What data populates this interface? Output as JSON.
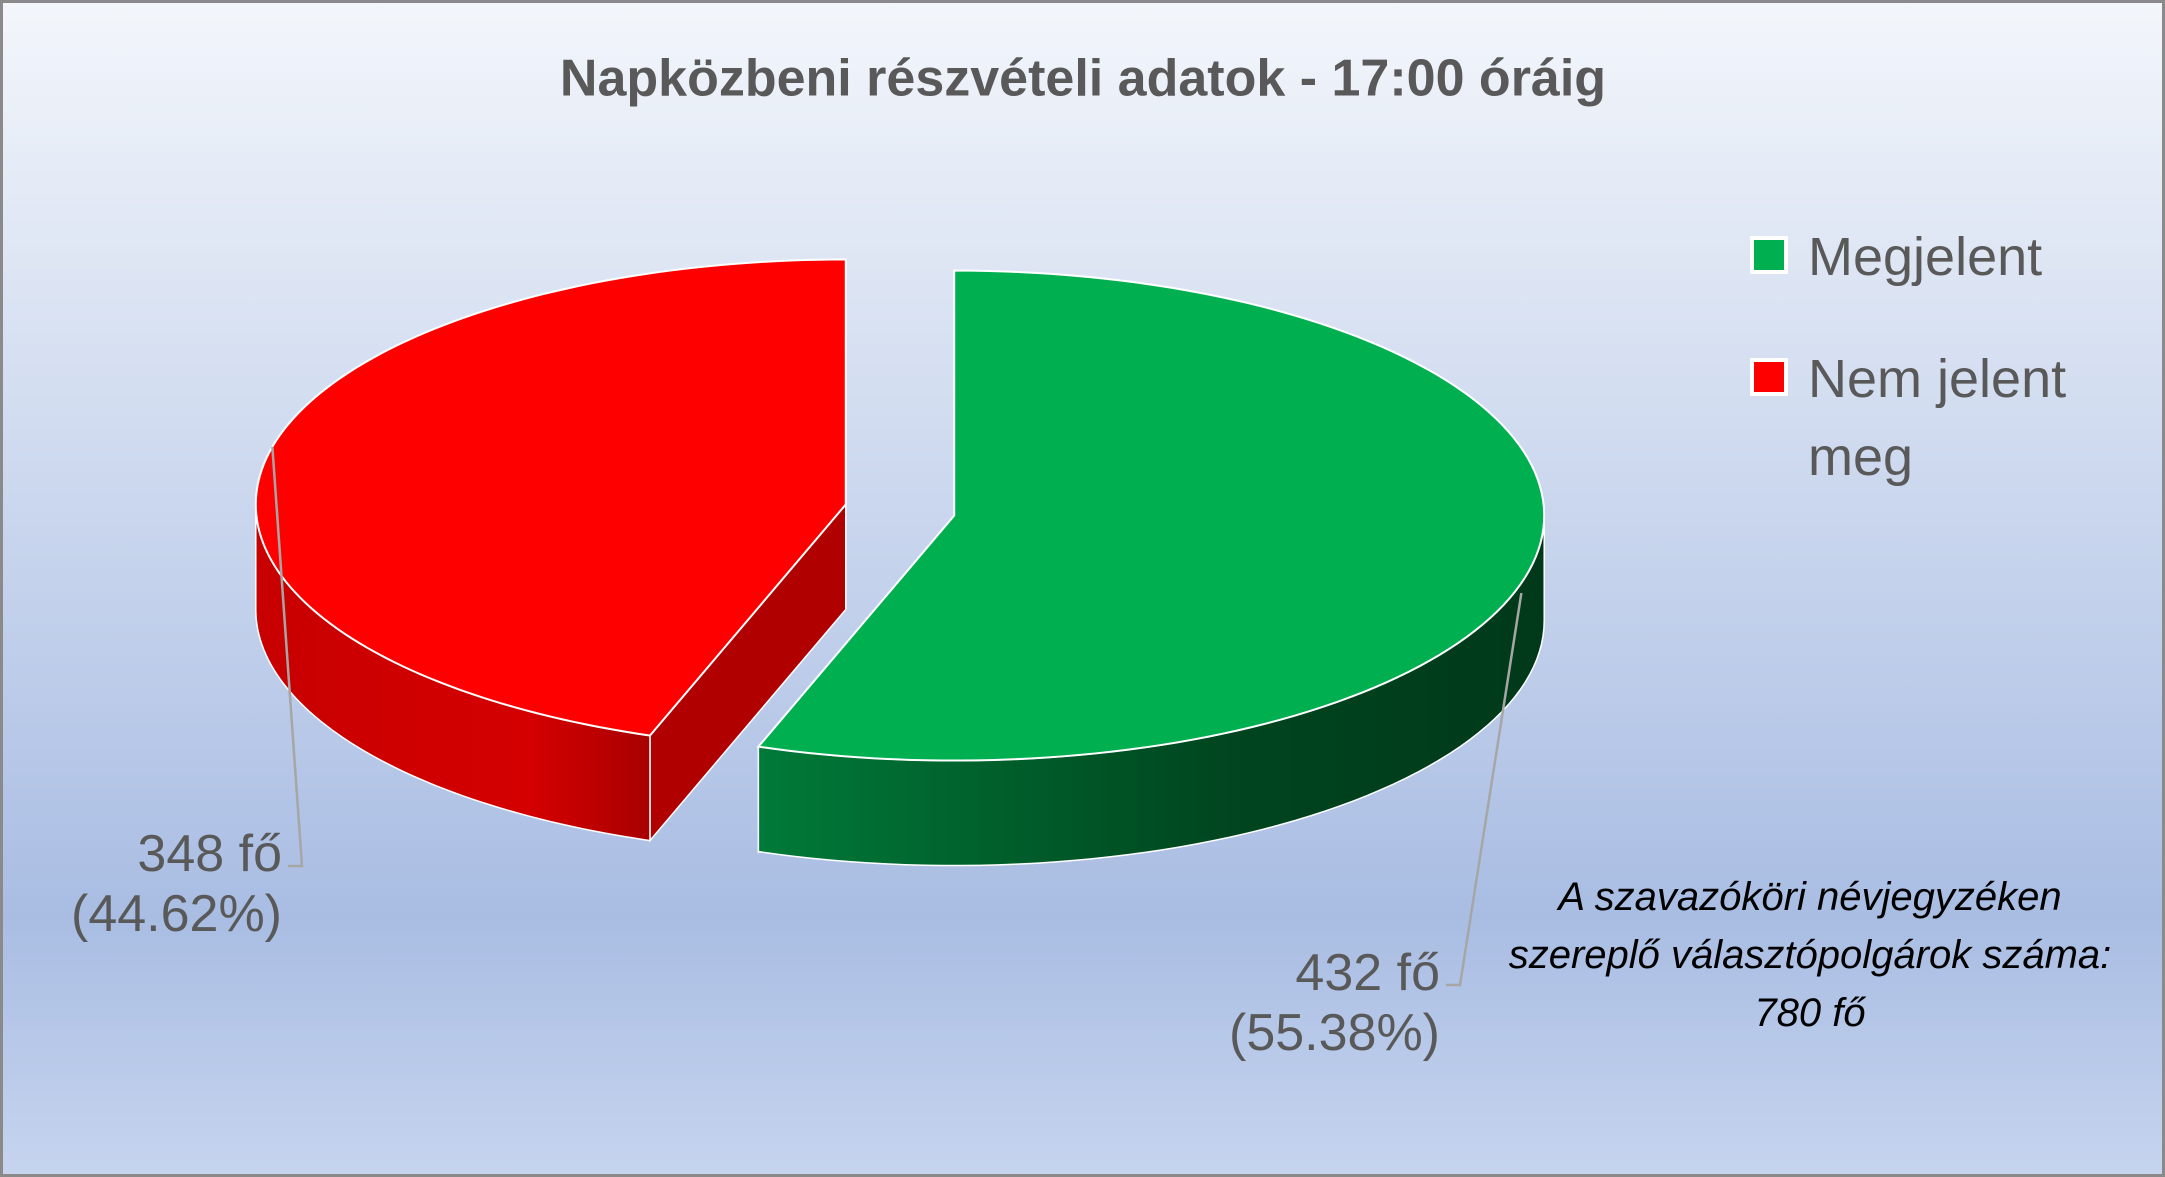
{
  "chart_data": {
    "type": "pie",
    "title": "Napközbeni részvételi adatok - 17:00 óráig",
    "categories": [
      "Megjelent",
      "Nem jelent meg"
    ],
    "values": [
      432,
      348
    ],
    "value_labels": [
      "432 fő (55.38%)",
      "348 fő (44.62%)"
    ],
    "colors": [
      "#00b050",
      "#ff0000"
    ],
    "annotation": "A szavazóköri névjegyzéken szereplő választópolgárok száma: 780 fő",
    "legend": "right"
  }
}
